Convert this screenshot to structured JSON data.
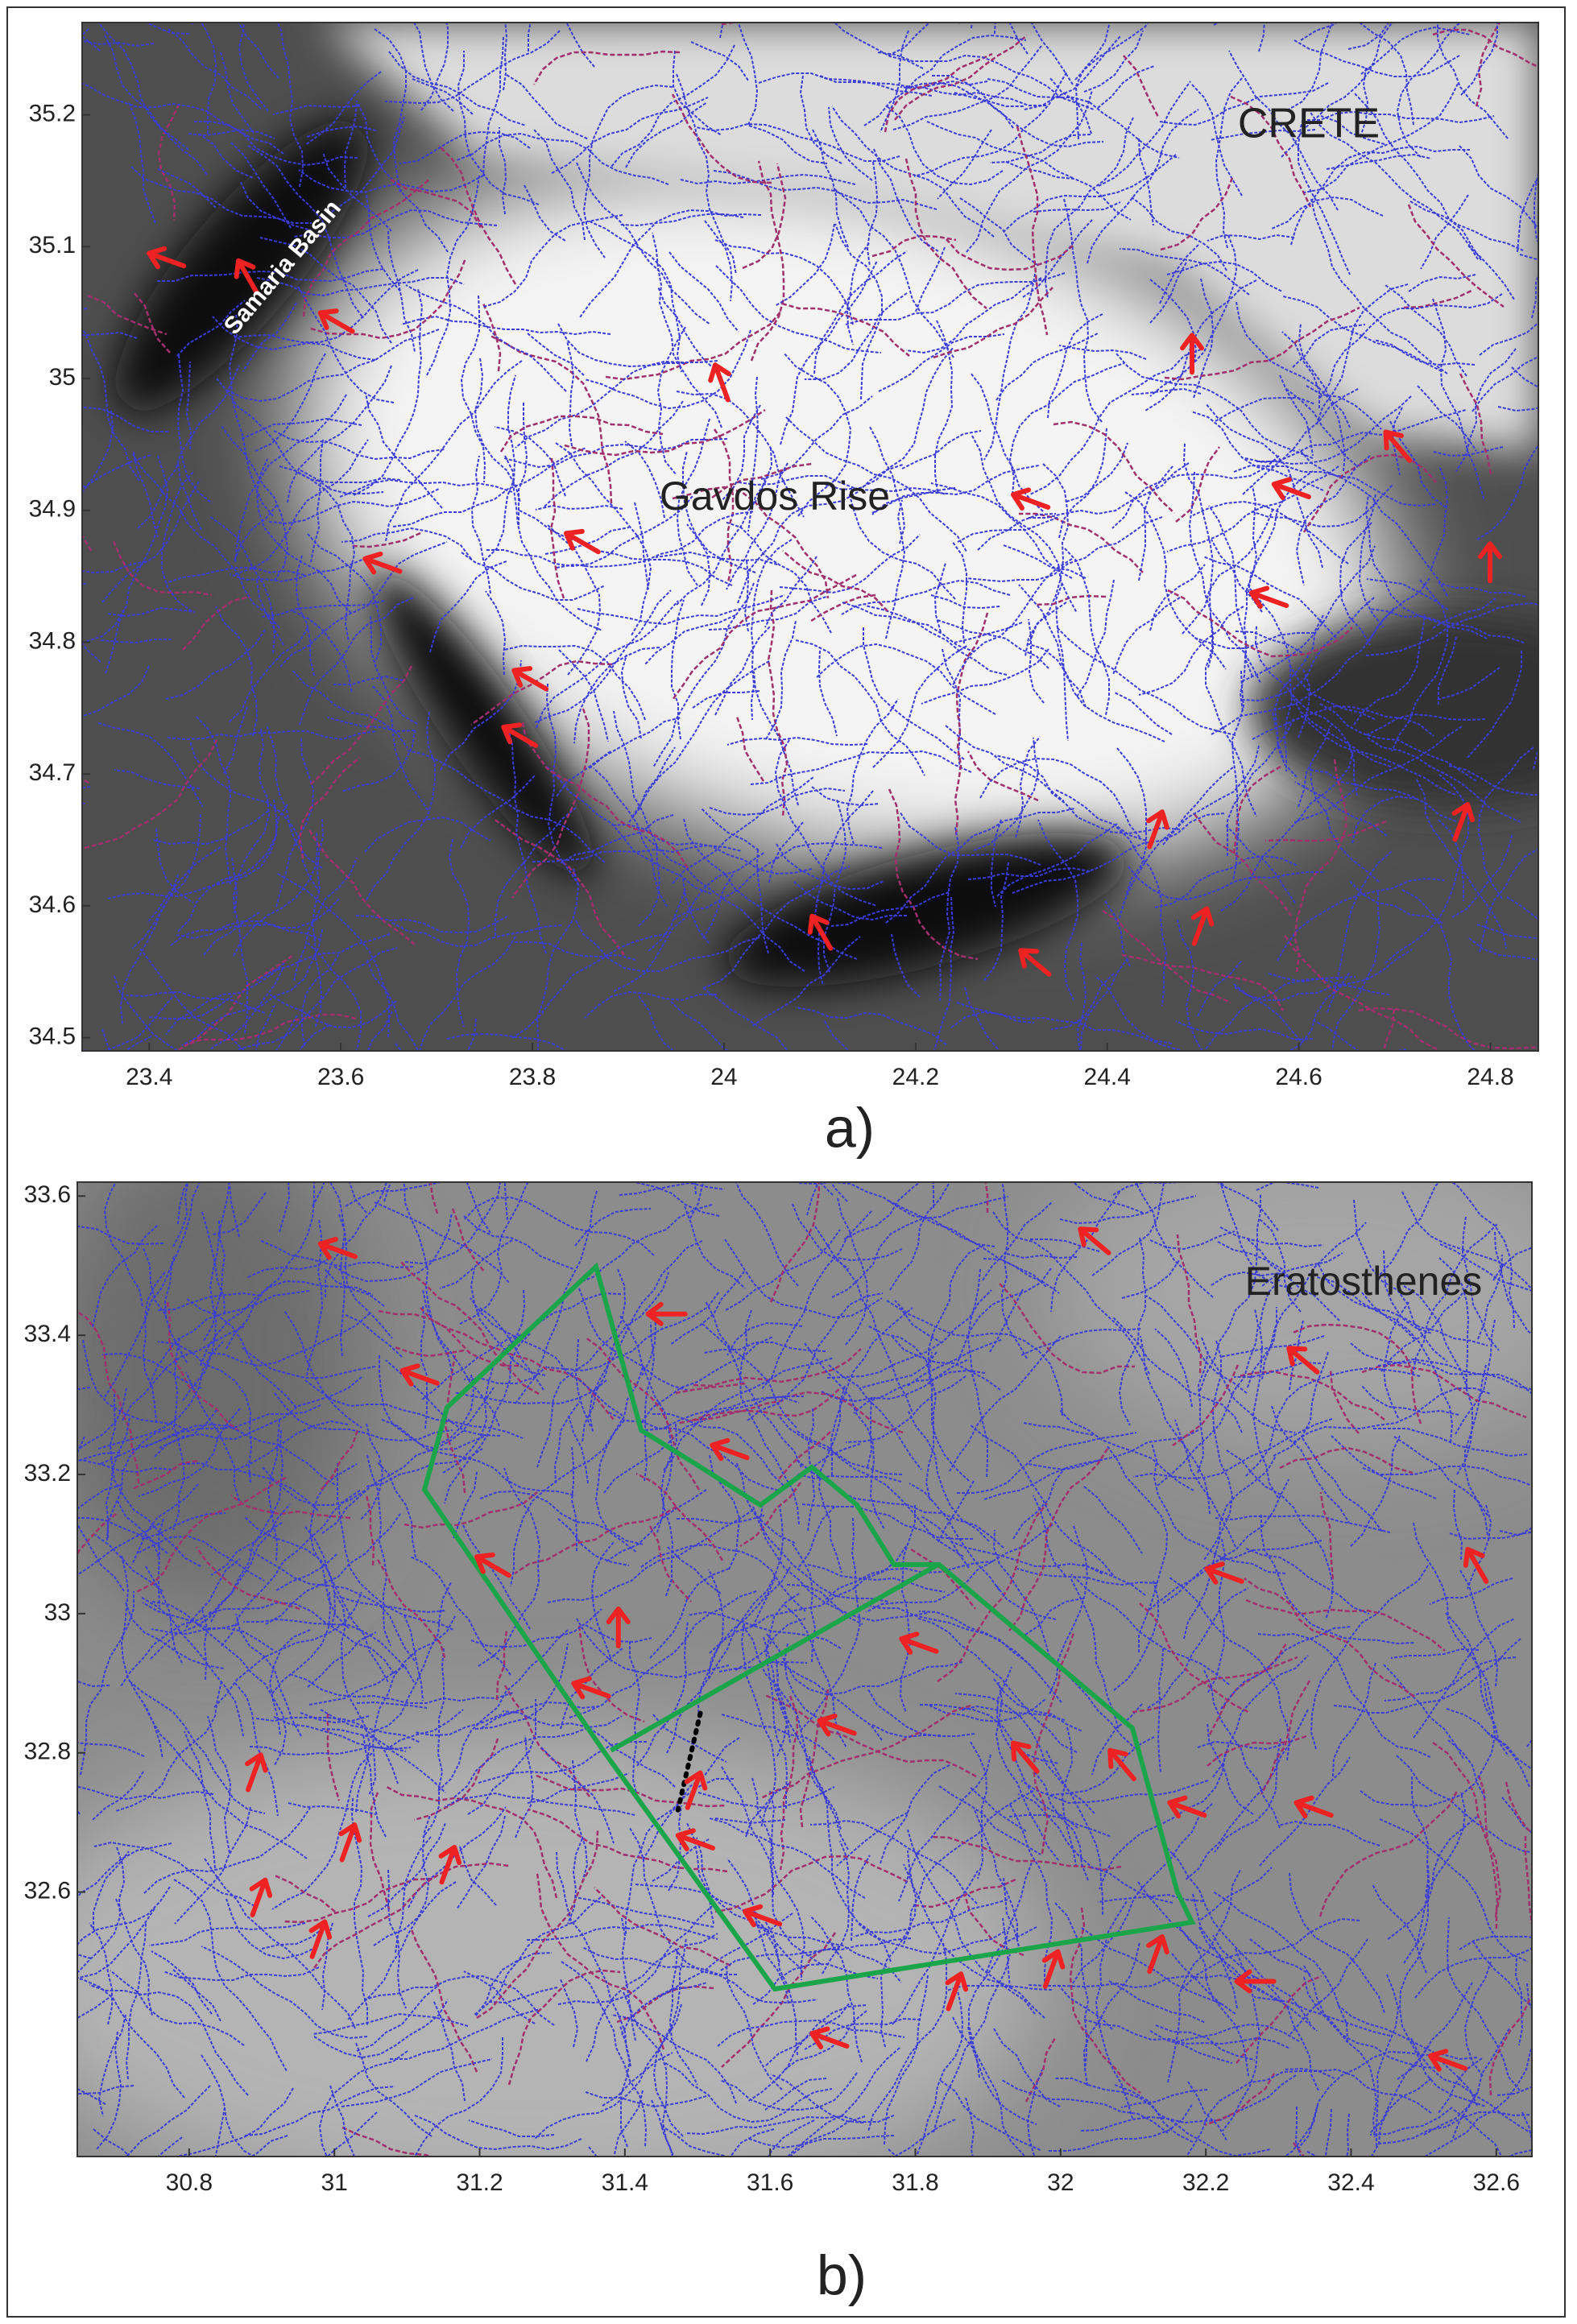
{
  "panels": [
    {
      "label": "a)",
      "xlim": [
        23.33,
        24.85
      ],
      "ylim": [
        34.49,
        35.27
      ],
      "xticks": [
        23.4,
        23.6,
        23.8,
        24,
        24.2,
        24.4,
        24.6,
        24.8
      ],
      "yticks": [
        34.5,
        34.6,
        34.7,
        34.8,
        34.9,
        35,
        35.1,
        35.2
      ],
      "annotations": [
        "CRETE",
        "Samaria Basin",
        "Gavdos Rise"
      ]
    },
    {
      "label": "b)",
      "xlim": [
        30.646,
        32.649
      ],
      "ylim": [
        32.22,
        33.62
      ],
      "xticks": [
        30.8,
        31,
        31.2,
        31.4,
        31.6,
        31.8,
        32,
        32.2,
        32.4,
        32.6
      ],
      "yticks": [
        32.6,
        32.8,
        33,
        33.2,
        33.4,
        33.6
      ],
      "annotations": [
        "Eratosthenes"
      ]
    }
  ]
}
